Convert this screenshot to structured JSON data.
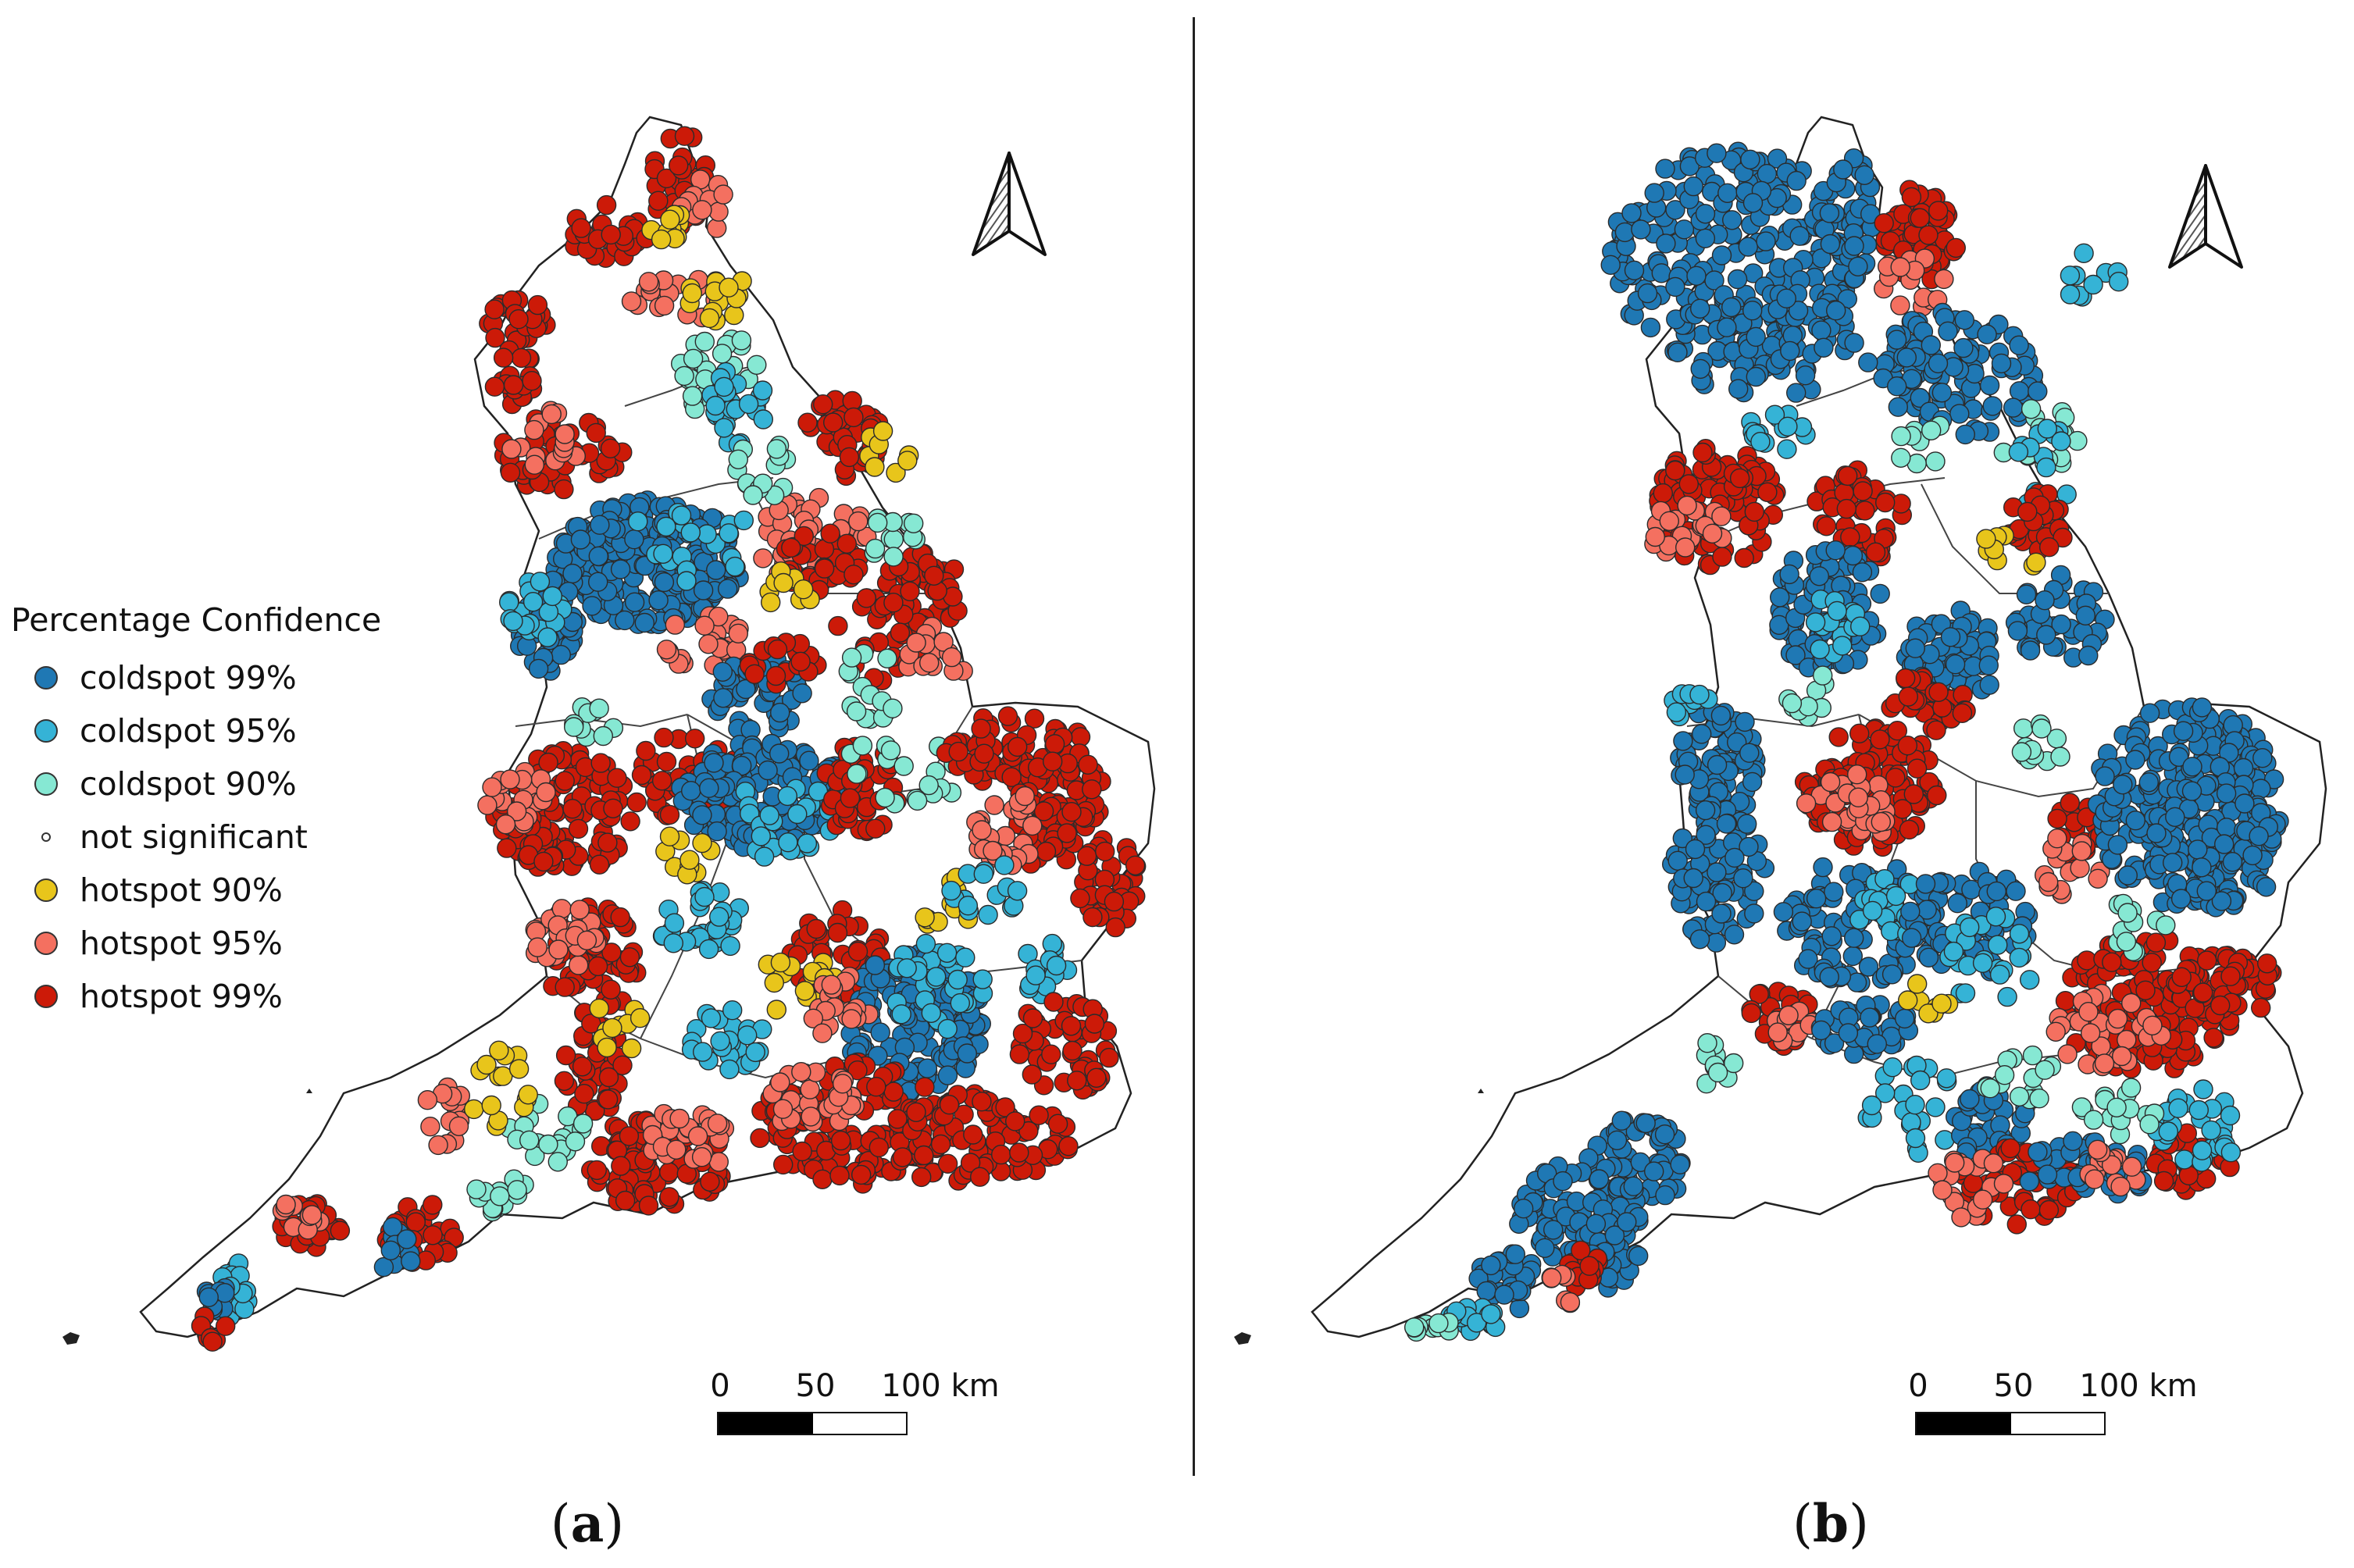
{
  "legend": {
    "title": "Percentage Confidence",
    "items": [
      {
        "label": "coldspot 99%",
        "color": "#1f78b4"
      },
      {
        "label": "coldspot 95%",
        "color": "#35b3d6"
      },
      {
        "label": "coldspot 90%",
        "color": "#86e8d3"
      },
      {
        "label": "not significant",
        "color": "#ffffff"
      },
      {
        "label": "hotspot 90%",
        "color": "#e8c51b"
      },
      {
        "label": "hotspot 95%",
        "color": "#f47060"
      },
      {
        "label": "hotspot 99%",
        "color": "#cc1a08"
      }
    ]
  },
  "scalebar": {
    "labels": [
      "0",
      "50",
      "100 km"
    ]
  },
  "panels": [
    {
      "label_open": "(",
      "label_letter": "a",
      "label_close": ")"
    },
    {
      "label_open": "(",
      "label_letter": "b",
      "label_close": ")"
    }
  ],
  "icons": {
    "north_arrow": "north-arrow-icon"
  }
}
